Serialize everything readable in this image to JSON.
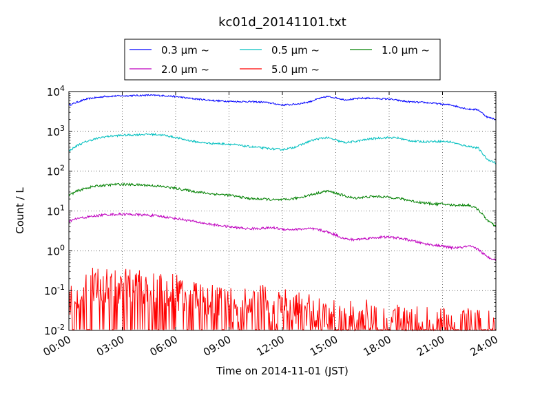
{
  "chart_data": {
    "type": "line",
    "title": "kc01d_20141101.txt",
    "xlabel": "Time on 2014-11-01 (JST)",
    "ylabel": "Count / L",
    "x_unit": "hours",
    "xlim": [
      0,
      24
    ],
    "x_ticks": [
      0,
      3,
      6,
      9,
      12,
      15,
      18,
      21,
      24
    ],
    "x_tick_labels": [
      "00:00",
      "03:00",
      "06:00",
      "09:00",
      "12:00",
      "15:00",
      "18:00",
      "21:00",
      "24:00"
    ],
    "y_scale": "log",
    "ylim": [
      0.01,
      10000
    ],
    "y_ticks": [
      {
        "base": "10",
        "exp": "-2",
        "value": 0.01
      },
      {
        "base": "10",
        "exp": "-1",
        "value": 0.1
      },
      {
        "base": "10",
        "exp": "0",
        "value": 1
      },
      {
        "base": "10",
        "exp": "1",
        "value": 10
      },
      {
        "base": "10",
        "exp": "2",
        "value": 100
      },
      {
        "base": "10",
        "exp": "3",
        "value": 1000
      },
      {
        "base": "10",
        "exp": "4",
        "value": 10000
      }
    ],
    "grid": true,
    "legend_position": "top",
    "series": [
      {
        "name": "0.3 μm ~",
        "color": "#0000ff",
        "x": [
          0,
          0.5,
          1,
          1.5,
          2,
          2.5,
          3,
          3.5,
          4,
          4.5,
          5,
          5.5,
          6,
          6.5,
          7,
          7.5,
          8,
          8.5,
          9,
          9.5,
          10,
          10.5,
          11,
          11.5,
          12,
          12.5,
          13,
          13.5,
          14,
          14.5,
          15,
          15.5,
          16,
          16.5,
          17,
          17.5,
          18,
          18.5,
          19,
          19.5,
          20,
          20.5,
          21,
          21.5,
          22,
          22.5,
          23,
          23.5,
          24
        ],
        "values": [
          4500,
          5500,
          6500,
          7000,
          7500,
          7700,
          7800,
          7900,
          8000,
          8100,
          8000,
          7800,
          7500,
          7000,
          6600,
          6300,
          6000,
          5800,
          5700,
          5600,
          5600,
          5500,
          5400,
          5000,
          4600,
          4700,
          5000,
          5500,
          6500,
          7500,
          7000,
          6200,
          6500,
          6800,
          6800,
          6600,
          6500,
          6000,
          5600,
          5400,
          5300,
          5100,
          4800,
          4600,
          4000,
          3600,
          3500,
          2300,
          2000
        ]
      },
      {
        "name": "0.5 μm ~",
        "color": "#00bfbf",
        "x": [
          0,
          0.5,
          1,
          1.5,
          2,
          2.5,
          3,
          3.5,
          4,
          4.5,
          5,
          5.5,
          6,
          6.5,
          7,
          7.5,
          8,
          8.5,
          9,
          9.5,
          10,
          10.5,
          11,
          11.5,
          12,
          12.5,
          13,
          13.5,
          14,
          14.5,
          15,
          15.5,
          16,
          16.5,
          17,
          17.5,
          18,
          18.5,
          19,
          19.5,
          20,
          20.5,
          21,
          21.5,
          22,
          22.5,
          23,
          23.5,
          24
        ],
        "values": [
          320,
          450,
          560,
          650,
          730,
          770,
          800,
          810,
          830,
          850,
          830,
          780,
          700,
          620,
          560,
          520,
          500,
          490,
          480,
          450,
          420,
          400,
          380,
          360,
          350,
          380,
          450,
          560,
          650,
          700,
          600,
          520,
          550,
          600,
          650,
          680,
          700,
          680,
          600,
          560,
          550,
          560,
          560,
          540,
          460,
          420,
          380,
          200,
          160
        ]
      },
      {
        "name": "1.0 μm ~",
        "color": "#008000",
        "x": [
          0,
          0.5,
          1,
          1.5,
          2,
          2.5,
          3,
          3.5,
          4,
          4.5,
          5,
          5.5,
          6,
          6.5,
          7,
          7.5,
          8,
          8.5,
          9,
          9.5,
          10,
          10.5,
          11,
          11.5,
          12,
          12.5,
          13,
          13.5,
          14,
          14.5,
          15,
          15.5,
          16,
          16.5,
          17,
          17.5,
          18,
          18.5,
          19,
          19.5,
          20,
          20.5,
          21,
          21.5,
          22,
          22.5,
          23,
          23.5,
          24
        ],
        "values": [
          25,
          32,
          38,
          42,
          44,
          46,
          47,
          46,
          45,
          44,
          42,
          40,
          37,
          34,
          31,
          29,
          27,
          26,
          25,
          23,
          21,
          20,
          20,
          19,
          19,
          20,
          22,
          25,
          28,
          32,
          28,
          24,
          21,
          22,
          23,
          23,
          22,
          21,
          19,
          17,
          16,
          15,
          15,
          14,
          14,
          14,
          11,
          6,
          4
        ]
      },
      {
        "name": "2.0 μm ~",
        "color": "#bf00bf",
        "x": [
          0,
          0.5,
          1,
          1.5,
          2,
          2.5,
          3,
          3.5,
          4,
          4.5,
          5,
          5.5,
          6,
          6.5,
          7,
          7.5,
          8,
          8.5,
          9,
          9.5,
          10,
          10.5,
          11,
          11.5,
          12,
          12.5,
          13,
          13.5,
          14,
          14.5,
          15,
          15.5,
          16,
          16.5,
          17,
          17.5,
          18,
          18.5,
          19,
          19.5,
          20,
          20.5,
          21,
          21.5,
          22,
          22.5,
          23,
          23.5,
          24
        ],
        "values": [
          5.5,
          6.5,
          7,
          7.5,
          8,
          8.2,
          8.3,
          8.2,
          8,
          7.8,
          7.5,
          7,
          6.5,
          6,
          5.5,
          5,
          4.6,
          4.3,
          4,
          3.8,
          3.6,
          3.6,
          3.7,
          3.8,
          3.5,
          3.4,
          3.5,
          3.6,
          3.4,
          3,
          2.5,
          2,
          1.9,
          2,
          2.1,
          2.2,
          2.2,
          2.1,
          1.9,
          1.7,
          1.5,
          1.4,
          1.3,
          1.2,
          1.2,
          1.3,
          1.1,
          0.7,
          0.6
        ]
      },
      {
        "name": "5.0 μm ~",
        "color": "#ff0000",
        "x": [
          0,
          0.5,
          1,
          1.5,
          2,
          2.5,
          3,
          3.5,
          4,
          4.5,
          5,
          5.5,
          6,
          6.5,
          7,
          7.5,
          8,
          8.5,
          9,
          9.5,
          10,
          10.5,
          11,
          11.5,
          12,
          12.5,
          13,
          13.5,
          14,
          14.5,
          15,
          15.5,
          16,
          16.5,
          17,
          17.5,
          18,
          18.5,
          19,
          19.5,
          20,
          20.5,
          21,
          21.5,
          22,
          22.5,
          23,
          23.5,
          24
        ],
        "values": [
          0.06,
          0.09,
          0.12,
          0.14,
          0.13,
          0.12,
          0.13,
          0.13,
          0.12,
          0.11,
          0.12,
          0.1,
          0.09,
          0.08,
          0.07,
          0.06,
          0.05,
          0.05,
          0.05,
          0.04,
          0.05,
          0.05,
          0.05,
          0.04,
          0.04,
          0.035,
          0.035,
          0.03,
          0.03,
          0.025,
          0.02,
          0.02,
          0.02,
          0.022,
          0.02,
          0.02,
          0.02,
          0.018,
          0.016,
          0.015,
          0.015,
          0.014,
          0.014,
          0.013,
          0.013,
          0.013,
          0.012,
          0.012,
          0.012
        ],
        "noisy": true
      }
    ]
  }
}
